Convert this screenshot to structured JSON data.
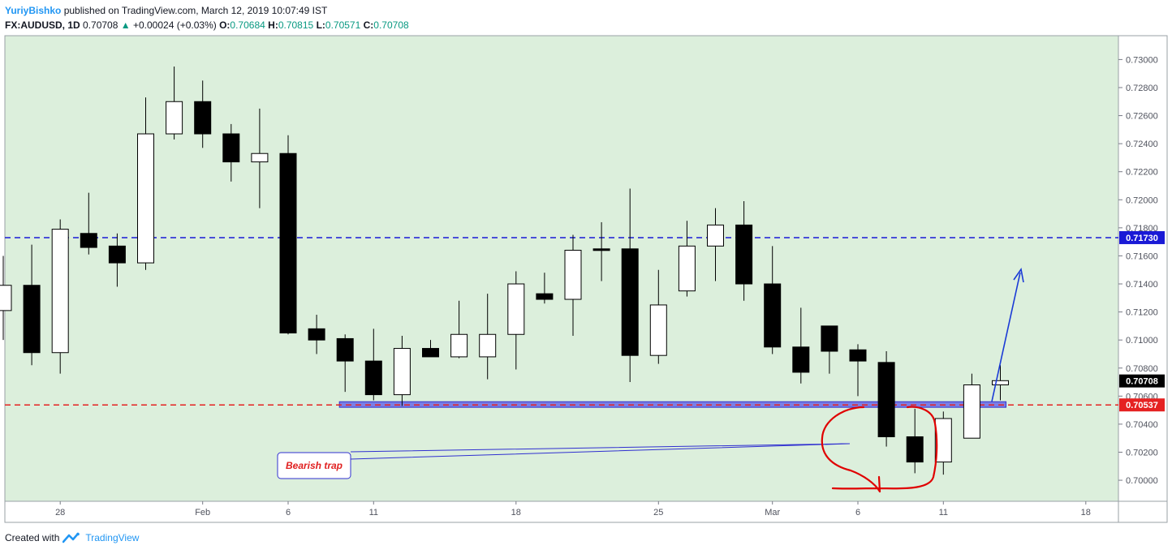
{
  "header": {
    "author": "YuriyBishko",
    "published": "published on TradingView.com, March 12, 2019 10:07:49 IST",
    "symbol": "FX:AUDUSD, 1D",
    "last": "0.70708",
    "change": "+0.00024 (+0.03%)",
    "o_label": "O:",
    "o_value": "0.70684",
    "h_label": "H:",
    "h_value": "0.70815",
    "l_label": "L:",
    "l_value": "0.70571",
    "c_label": "C:",
    "c_value": "0.70708"
  },
  "footer": {
    "created": "Created with",
    "brand": "TradingView"
  },
  "colors": {
    "background": "#dcefdc",
    "bull": "#ffffff",
    "bear": "#000000",
    "resistance": "#1a1ad6",
    "support": "#e52222",
    "zone": "#6a6ae6",
    "annotation": "#e00000",
    "arrow": "#1a3ad6"
  },
  "chart_data": {
    "type": "candlestick",
    "ylim": [
      0.6985,
      0.7317
    ],
    "y_ticks": [
      "0.73000",
      "0.72800",
      "0.72600",
      "0.72400",
      "0.72200",
      "0.72000",
      "0.71800",
      "0.71600",
      "0.71400",
      "0.71200",
      "0.71000",
      "0.70800",
      "0.70600",
      "0.70400",
      "0.70200",
      "0.70000"
    ],
    "x_ticks": [
      {
        "label": "28",
        "index": 2
      },
      {
        "label": "Feb",
        "index": 7
      },
      {
        "label": "6",
        "index": 10
      },
      {
        "label": "11",
        "index": 13
      },
      {
        "label": "18",
        "index": 18
      },
      {
        "label": "25",
        "index": 23
      },
      {
        "label": "Mar",
        "index": 27
      },
      {
        "label": "6",
        "index": 30
      },
      {
        "label": "11",
        "index": 33
      },
      {
        "label": "18",
        "index": 38
      }
    ],
    "candles": [
      {
        "o": 0.7121,
        "h": 0.716,
        "l": 0.71,
        "c": 0.7139
      },
      {
        "o": 0.7139,
        "h": 0.7168,
        "l": 0.7082,
        "c": 0.7091
      },
      {
        "o": 0.7091,
        "h": 0.7186,
        "l": 0.7076,
        "c": 0.7179
      },
      {
        "o": 0.7176,
        "h": 0.7205,
        "l": 0.7161,
        "c": 0.7166
      },
      {
        "o": 0.7167,
        "h": 0.7176,
        "l": 0.7138,
        "c": 0.7155
      },
      {
        "o": 0.7155,
        "h": 0.7273,
        "l": 0.715,
        "c": 0.7247
      },
      {
        "o": 0.7247,
        "h": 0.7295,
        "l": 0.7243,
        "c": 0.727
      },
      {
        "o": 0.727,
        "h": 0.7285,
        "l": 0.7237,
        "c": 0.7247
      },
      {
        "o": 0.7247,
        "h": 0.7254,
        "l": 0.7213,
        "c": 0.7227
      },
      {
        "o": 0.7227,
        "h": 0.7265,
        "l": 0.7194,
        "c": 0.7233
      },
      {
        "o": 0.7233,
        "h": 0.7246,
        "l": 0.7104,
        "c": 0.7105
      },
      {
        "o": 0.7108,
        "h": 0.7118,
        "l": 0.709,
        "c": 0.71
      },
      {
        "o": 0.7101,
        "h": 0.7104,
        "l": 0.7063,
        "c": 0.7085
      },
      {
        "o": 0.7085,
        "h": 0.7108,
        "l": 0.7057,
        "c": 0.7061
      },
      {
        "o": 0.7061,
        "h": 0.7103,
        "l": 0.7053,
        "c": 0.7094
      },
      {
        "o": 0.7094,
        "h": 0.71,
        "l": 0.7088,
        "c": 0.7088
      },
      {
        "o": 0.7088,
        "h": 0.7128,
        "l": 0.7087,
        "c": 0.7104
      },
      {
        "o": 0.7088,
        "h": 0.7133,
        "l": 0.7072,
        "c": 0.7104
      },
      {
        "o": 0.7104,
        "h": 0.7149,
        "l": 0.7079,
        "c": 0.714
      },
      {
        "o": 0.7133,
        "h": 0.7148,
        "l": 0.7126,
        "c": 0.7129
      },
      {
        "o": 0.7129,
        "h": 0.7175,
        "l": 0.7103,
        "c": 0.7164
      },
      {
        "o": 0.7165,
        "h": 0.7184,
        "l": 0.7142,
        "c": 0.7164
      },
      {
        "o": 0.7165,
        "h": 0.7208,
        "l": 0.707,
        "c": 0.7089
      },
      {
        "o": 0.7089,
        "h": 0.715,
        "l": 0.7083,
        "c": 0.7125
      },
      {
        "o": 0.7135,
        "h": 0.7185,
        "l": 0.7131,
        "c": 0.7167
      },
      {
        "o": 0.7167,
        "h": 0.7194,
        "l": 0.7142,
        "c": 0.7182
      },
      {
        "o": 0.7182,
        "h": 0.7199,
        "l": 0.7128,
        "c": 0.714
      },
      {
        "o": 0.714,
        "h": 0.7167,
        "l": 0.709,
        "c": 0.7095
      },
      {
        "o": 0.7095,
        "h": 0.7123,
        "l": 0.7069,
        "c": 0.7077
      },
      {
        "o": 0.711,
        "h": 0.711,
        "l": 0.7076,
        "c": 0.7092
      },
      {
        "o": 0.7093,
        "h": 0.7097,
        "l": 0.706,
        "c": 0.7085
      },
      {
        "o": 0.7084,
        "h": 0.7092,
        "l": 0.7024,
        "c": 0.7031
      },
      {
        "o": 0.7031,
        "h": 0.7051,
        "l": 0.7005,
        "c": 0.7013
      },
      {
        "o": 0.7013,
        "h": 0.7049,
        "l": 0.7004,
        "c": 0.7044
      },
      {
        "o": 0.703,
        "h": 0.7076,
        "l": 0.703,
        "c": 0.7068
      },
      {
        "o": 0.7068,
        "h": 0.7082,
        "l": 0.7057,
        "c": 0.7071
      }
    ],
    "levels": [
      {
        "name": "resistance",
        "value": 0.7173,
        "label": "0.71730"
      },
      {
        "name": "support",
        "value": 0.70537,
        "label": "0.70537"
      },
      {
        "name": "last-price",
        "value": 0.70708,
        "label": "0.70708"
      }
    ],
    "zone": {
      "from": 0.7052,
      "to": 0.7056,
      "start_index": 11.8,
      "end_index": 35.2
    },
    "annotation": {
      "text": "Bearish trap"
    }
  }
}
